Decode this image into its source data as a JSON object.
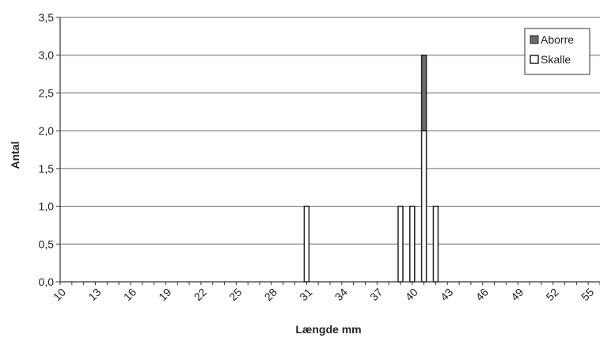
{
  "chart_data": {
    "type": "bar",
    "stacked": true,
    "xlabel": "Længde mm",
    "ylabel": "Antal",
    "x_min": 10,
    "x_max": 56,
    "ylim": [
      0,
      3.5
    ],
    "y_ticks": [
      "0,0",
      "0,5",
      "1,0",
      "1,5",
      "2,0",
      "2,5",
      "3,0",
      "3,5"
    ],
    "x_ticks": [
      "10",
      "13",
      "16",
      "19",
      "22",
      "25",
      "28",
      "31",
      "34",
      "37",
      "40",
      "43",
      "46",
      "49",
      "52",
      "55"
    ],
    "grid": true,
    "legend_position": "top-right",
    "series": [
      {
        "name": "Skalle",
        "color": "#ffffff",
        "points": [
          {
            "x": 31,
            "y": 1
          },
          {
            "x": 39,
            "y": 1
          },
          {
            "x": 40,
            "y": 1
          },
          {
            "x": 41,
            "y": 2
          },
          {
            "x": 42,
            "y": 1
          }
        ]
      },
      {
        "name": "Aborre",
        "color": "#6b6b6b",
        "points": [
          {
            "x": 41,
            "y": 1
          }
        ]
      }
    ],
    "legend": [
      "Aborre",
      "Skalle"
    ]
  }
}
